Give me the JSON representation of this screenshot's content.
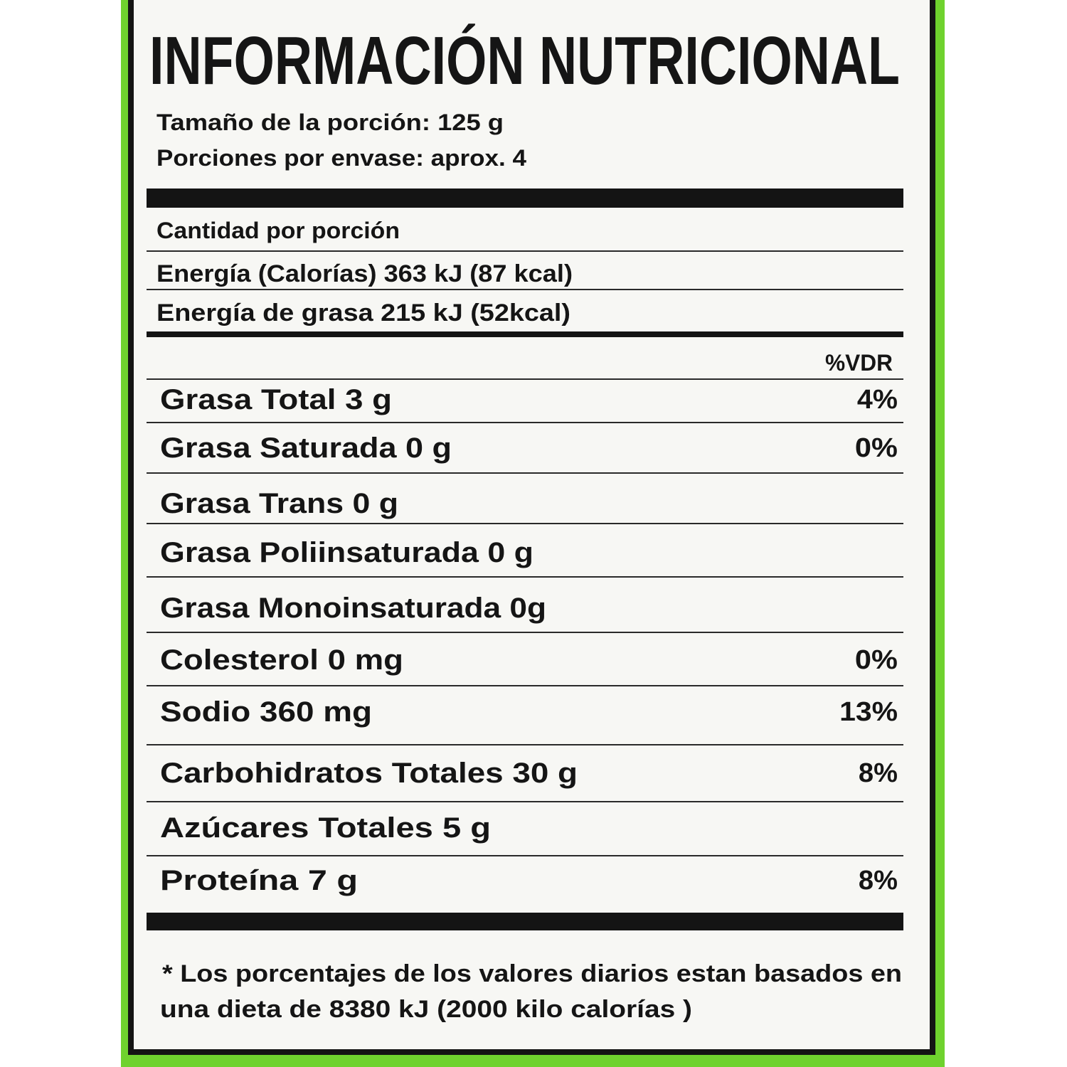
{
  "colors": {
    "background_green": "#6fd22e",
    "panel": "#f7f7f4",
    "ink": "#141414"
  },
  "title": "INFORMACIÓN NUTRICIONAL",
  "serving_size": "Tamaño de la porción: 125 g",
  "servings_per_container": "Porciones por envase: aprox. 4",
  "amount_per_serving": "Cantidad por porción",
  "energy": "Energía (Calorías) 363 kJ (87 kcal)",
  "energy_from_fat": "Energía de grasa  215 kJ (52kcal)",
  "dv_header": "%VDR",
  "nutrients": [
    {
      "label": "Grasa  Total  3 g",
      "dv": "4%"
    },
    {
      "label": "Grasa Saturada 0 g",
      "dv": "0%"
    },
    {
      "label": "Grasa Trans 0 g",
      "dv": ""
    },
    {
      "label": "Grasa Poliinsaturada 0 g",
      "dv": ""
    },
    {
      "label": "Grasa Monoinsaturada 0g",
      "dv": ""
    },
    {
      "label": "Colesterol 0 mg",
      "dv": "0%"
    },
    {
      "label": "Sodio 360 mg",
      "dv": "13%"
    },
    {
      "label": "Carbohidratos Totales 30 g",
      "dv": "8%"
    },
    {
      "label": "Azúcares Totales  5 g",
      "dv": ""
    },
    {
      "label": "Proteína   7 g",
      "dv": "8%"
    }
  ],
  "footnote": {
    "line1": "* Los porcentajes de los valores diarios estan basados en",
    "line2": "una dieta de 8380 kJ (2000 kilo calorías )"
  }
}
